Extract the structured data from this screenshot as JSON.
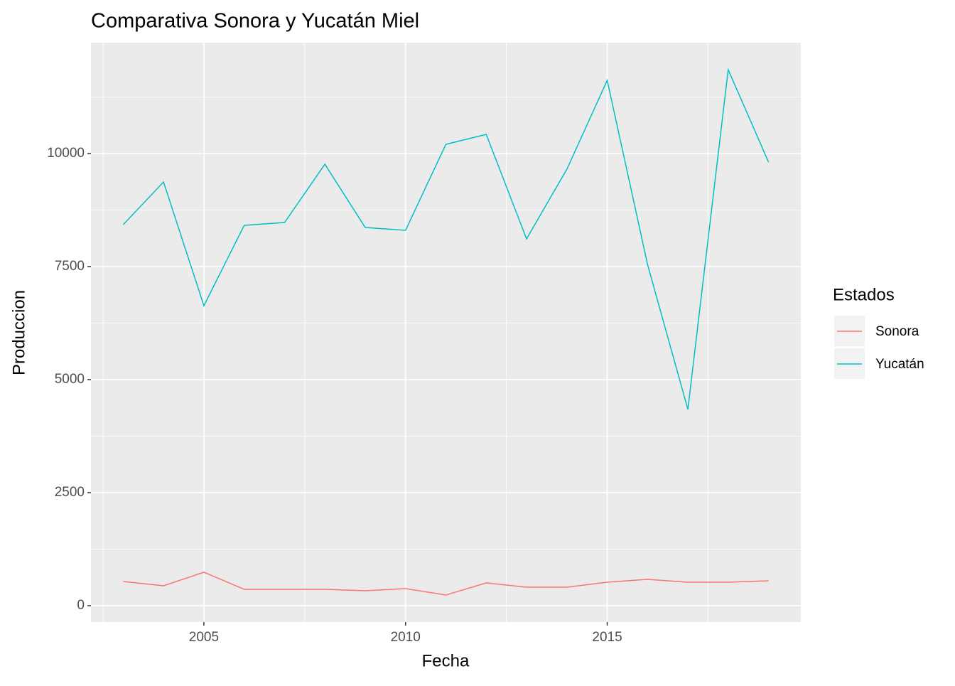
{
  "chart_data": {
    "type": "line",
    "title": "Comparativa Sonora y Yucatán Miel",
    "x_label": "Fecha",
    "y_label": "Produccion",
    "x": [
      2003,
      2004,
      2005,
      2006,
      2007,
      2008,
      2009,
      2010,
      2011,
      2012,
      2013,
      2014,
      2015,
      2016,
      2017,
      2018,
      2019
    ],
    "series": [
      {
        "name": "Sonora",
        "color": "#F8766D",
        "values": [
          535,
          440,
          739,
          362,
          362,
          362,
          330,
          377,
          236,
          503,
          409,
          409,
          519,
          582,
          519,
          519,
          550
        ]
      },
      {
        "name": "Yucatán",
        "color": "#00BFC4",
        "values": [
          8428,
          9371,
          6635,
          8412,
          8475,
          9764,
          8365,
          8302,
          10204,
          10425,
          8113,
          9654,
          11619,
          7547,
          4340,
          11855,
          9811
        ]
      }
    ],
    "legend_title": "Estados",
    "legend_position": "right",
    "xlim": [
      2002.2,
      2019.8
    ],
    "xticks": [
      2005,
      2010,
      2015
    ],
    "xminor": [
      2002.5,
      2007.5,
      2012.5,
      2017.5
    ],
    "ylim": [
      -362,
      12453
    ],
    "yticks": [
      0,
      2500,
      5000,
      7500,
      10000
    ],
    "yminor": [
      1250,
      3750,
      6250,
      8750,
      11250
    ],
    "grid": true
  }
}
